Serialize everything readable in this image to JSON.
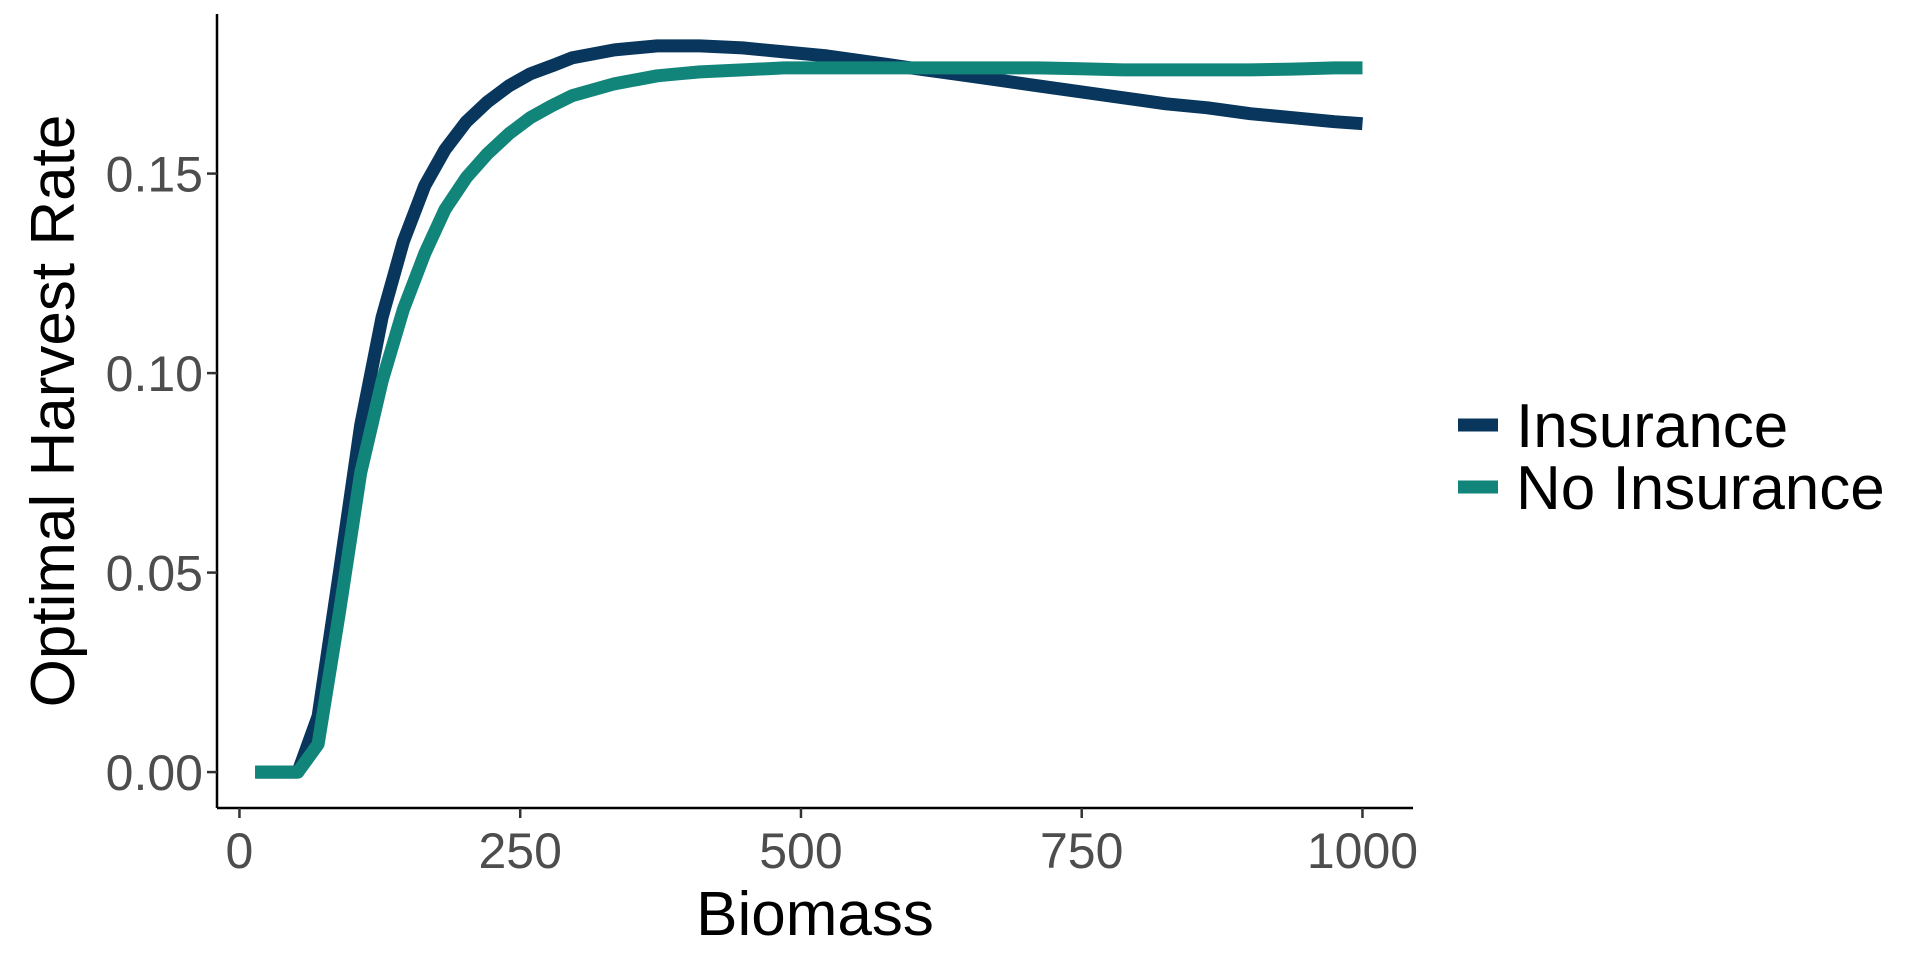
{
  "chart_data": {
    "type": "line",
    "title": "",
    "xlabel": "Biomass",
    "ylabel": "Optimal Harvest Rate",
    "xlim": [
      -20,
      1045
    ],
    "ylim": [
      -0.009,
      0.19
    ],
    "x_ticks": [
      0,
      250,
      500,
      750,
      1000
    ],
    "x_tick_labels": [
      "0",
      "250",
      "500",
      "750",
      "1000"
    ],
    "y_ticks": [
      0.0,
      0.05,
      0.1,
      0.15
    ],
    "y_tick_labels": [
      "0.00",
      "0.05",
      "0.10",
      "0.15"
    ],
    "grid": false,
    "legend_position": "right",
    "series": [
      {
        "name": "Insurance",
        "color": "#08365c",
        "x": [
          14,
          33,
          52,
          70,
          89,
          108,
          127,
          146,
          165,
          183,
          202,
          221,
          240,
          259,
          278,
          296,
          315,
          334,
          353,
          372,
          391,
          410,
          448,
          485,
          523,
          561,
          598,
          636,
          674,
          711,
          749,
          787,
          825,
          862,
          900,
          938,
          975,
          1000
        ],
        "values": [
          0,
          0,
          0,
          0.014,
          0.05,
          0.087,
          0.114,
          0.133,
          0.147,
          0.156,
          0.163,
          0.168,
          0.172,
          0.175,
          0.177,
          0.179,
          0.18,
          0.181,
          0.1815,
          0.182,
          0.182,
          0.182,
          0.1815,
          0.1805,
          0.1795,
          0.178,
          0.1765,
          0.175,
          0.1735,
          0.172,
          0.1705,
          0.169,
          0.1675,
          0.1665,
          0.165,
          0.164,
          0.163,
          0.1625
        ]
      },
      {
        "name": "No Insurance",
        "color": "#12857a",
        "x": [
          14,
          33,
          52,
          70,
          89,
          108,
          127,
          146,
          165,
          183,
          202,
          221,
          240,
          259,
          278,
          296,
          315,
          334,
          353,
          372,
          391,
          410,
          448,
          485,
          523,
          561,
          598,
          636,
          674,
          711,
          749,
          787,
          825,
          862,
          900,
          938,
          975,
          1000
        ],
        "values": [
          0,
          0,
          0,
          0.007,
          0.04,
          0.075,
          0.098,
          0.116,
          0.13,
          0.141,
          0.149,
          0.155,
          0.16,
          0.164,
          0.167,
          0.1695,
          0.171,
          0.1725,
          0.1735,
          0.1745,
          0.175,
          0.1755,
          0.176,
          0.1765,
          0.1765,
          0.1765,
          0.1765,
          0.1765,
          0.1765,
          0.1765,
          0.1763,
          0.176,
          0.176,
          0.176,
          0.176,
          0.1762,
          0.1765,
          0.1765
        ]
      }
    ]
  }
}
